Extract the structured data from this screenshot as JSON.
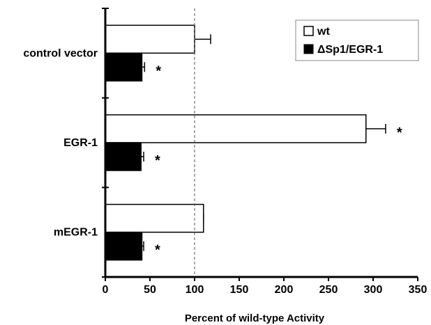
{
  "chart_data": {
    "type": "bar",
    "orientation": "horizontal",
    "categories": [
      "control vector",
      "EGR-1",
      "mEGR-1"
    ],
    "series": [
      {
        "name": "wt",
        "values": [
          100,
          292,
          110
        ],
        "errors": [
          18,
          22,
          0
        ],
        "color": "#ffffff"
      },
      {
        "name": "ΔSp1/EGR-1",
        "values": [
          41,
          40,
          41
        ],
        "errors": [
          3,
          3,
          2
        ],
        "color": "#000000"
      }
    ],
    "significance": {
      "wt": [
        false,
        true,
        false
      ],
      "ΔSp1/EGR-1": [
        true,
        true,
        true
      ]
    },
    "asterisk": "*",
    "xlabel": "Percent of wild-type Activity",
    "xticks": [
      0,
      50,
      100,
      150,
      200,
      250,
      300,
      350
    ],
    "xlim": [
      0,
      350
    ],
    "reference_line": 100,
    "legend": {
      "entries": [
        "wt",
        "ΔSp1/EGR-1"
      ],
      "placement": "top-right"
    },
    "grid": false
  }
}
